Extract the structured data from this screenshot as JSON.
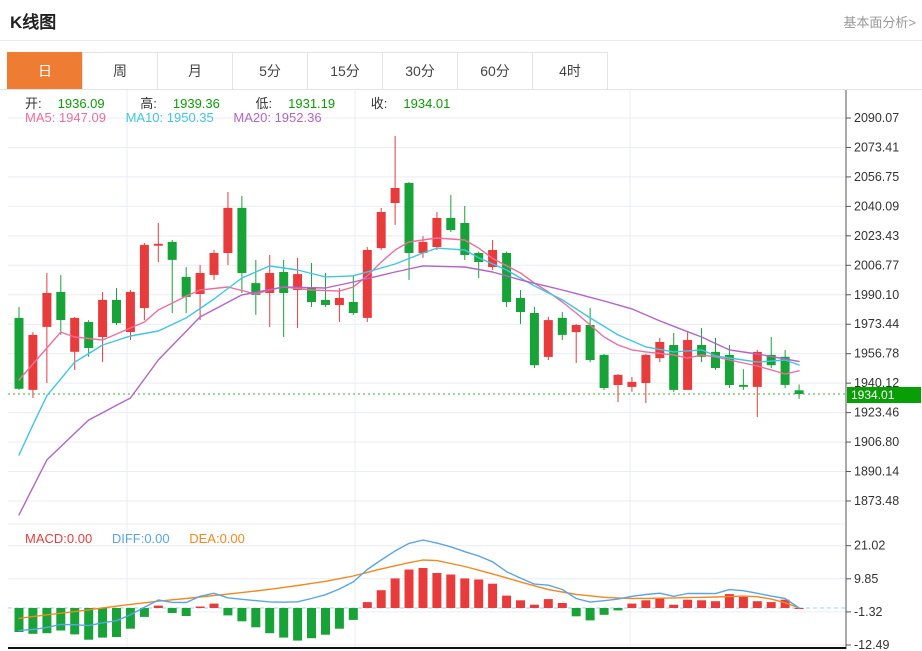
{
  "header": {
    "title": "K线图",
    "link_label": "基本面分析>"
  },
  "tabs": [
    {
      "label": "日",
      "active": true
    },
    {
      "label": "周",
      "active": false
    },
    {
      "label": "月",
      "active": false
    },
    {
      "label": "5分",
      "active": false
    },
    {
      "label": "15分",
      "active": false
    },
    {
      "label": "30分",
      "active": false
    },
    {
      "label": "60分",
      "active": false
    },
    {
      "label": "4时",
      "active": false
    }
  ],
  "ohlc_legend": {
    "open_label": "开:",
    "open": "1936.09",
    "high_label": "高:",
    "high": "1939.36",
    "low_label": "低:",
    "low": "1931.19",
    "close_label": "收:",
    "close": "1934.01"
  },
  "ma_legend": {
    "ma5": "MA5: 1947.09",
    "ma10": "MA10: 1950.35",
    "ma20": "MA20: 1952.36"
  },
  "macd_legend": {
    "macd": "MACD:0.00",
    "diff": "DIFF:0.00",
    "dea": "DEA:0.00"
  },
  "current_price_tag": "1934.01",
  "colors": {
    "up": "#e83c3c",
    "down": "#17a338",
    "ma5": "#f06e9e",
    "ma10": "#3fc6e6",
    "ma20": "#b464c8",
    "diff": "#58a5e8",
    "dea": "#f5871f",
    "grid": "#e9eef5",
    "axis": "#555",
    "axis_text": "#333",
    "dotted_price": "#2eb82e",
    "macd_zero_dash": "#a3d0f2",
    "tab_active": "#ee7d33",
    "tag_green": "#0a9e06",
    "bottom_border": "#111"
  },
  "chart_data": {
    "type": "candlestick-with-macd",
    "title": "K线图 (daily gold K-line)",
    "legend_position": "top-left",
    "grid": true,
    "y_axis_main": {
      "ticks": [
        2090.07,
        2073.41,
        2056.75,
        2040.09,
        2023.43,
        2006.77,
        1990.1,
        1973.44,
        1956.78,
        1940.12,
        1923.46,
        1906.8,
        1890.14,
        1873.48
      ],
      "range": [
        1865,
        2095
      ]
    },
    "y_axis_macd": {
      "ticks": [
        21.02,
        9.85,
        -1.32,
        -12.49
      ],
      "range": [
        -14,
        23
      ]
    },
    "current_price": 1934.01,
    "candles_ohlc": [
      [
        1977.0,
        1983.2,
        1936.3,
        1936.9
      ],
      [
        1936.3,
        1969.0,
        1931.7,
        1967.4
      ],
      [
        1971.9,
        2002.4,
        1940.2,
        1991.1
      ],
      [
        1991.7,
        2001.3,
        1967.4,
        1975.8
      ],
      [
        1957.8,
        1977.5,
        1947.6,
        1977.0
      ],
      [
        1974.7,
        1975.8,
        1955.0,
        1960.0
      ],
      [
        1966.2,
        1991.7,
        1952.0,
        1987.2
      ],
      [
        1987.2,
        1993.9,
        1973.0,
        1974.1
      ],
      [
        1969.0,
        1992.8,
        1964.5,
        1991.7
      ],
      [
        1982.6,
        2019.4,
        1975.8,
        2018.3
      ],
      [
        2017.8,
        2030.7,
        2008.6,
        2018.9
      ],
      [
        2020.0,
        2021.1,
        1979.8,
        2009.8
      ],
      [
        2000.2,
        2005.8,
        1979.8,
        1988.9
      ],
      [
        1990.5,
        2006.9,
        1975.8,
        2002.4
      ],
      [
        2001.3,
        2015.4,
        1998.5,
        2013.7
      ],
      [
        2013.7,
        2048.2,
        2006.9,
        2039.2
      ],
      [
        2039.2,
        2046.0,
        1991.1,
        2002.4
      ],
      [
        1996.7,
        2009.8,
        1978.7,
        1990.0
      ],
      [
        1991.1,
        2012.6,
        1971.9,
        2002.4
      ],
      [
        2003.0,
        2009.8,
        1966.2,
        1991.1
      ],
      [
        1992.8,
        2011.0,
        1971.3,
        2001.8
      ],
      [
        1994.5,
        2008.1,
        1983.2,
        1986.0
      ],
      [
        1987.2,
        2002.4,
        1983.2,
        1984.3
      ],
      [
        1984.3,
        1993.9,
        1974.7,
        1988.3
      ],
      [
        1986.0,
        2001.3,
        1978.7,
        1979.8
      ],
      [
        1977.0,
        2017.1,
        1974.7,
        2015.4
      ],
      [
        2016.5,
        2039.2,
        2015.4,
        2036.9
      ],
      [
        2042.0,
        2079.9,
        2029.6,
        2050.5
      ],
      [
        2053.3,
        2053.9,
        1998.5,
        2013.7
      ],
      [
        2013.7,
        2023.3,
        2011.0,
        2020.0
      ],
      [
        2017.1,
        2036.9,
        2015.4,
        2033.5
      ],
      [
        2033.5,
        2046.5,
        2025.6,
        2026.7
      ],
      [
        2030.7,
        2040.3,
        2009.8,
        2012.6
      ],
      [
        2013.7,
        2014.5,
        1999.6,
        2008.6
      ],
      [
        2005.8,
        2021.1,
        2004.1,
        2015.4
      ],
      [
        2013.7,
        2014.5,
        1983.2,
        1986.0
      ],
      [
        1988.3,
        1992.8,
        1973.5,
        1980.4
      ],
      [
        1979.8,
        1983.2,
        1948.7,
        1950.3
      ],
      [
        1955.0,
        1977.6,
        1953.2,
        1975.8
      ],
      [
        1977.0,
        1980.4,
        1964.5,
        1967.4
      ],
      [
        1969.0,
        1973.5,
        1951.5,
        1973.0
      ],
      [
        1973.0,
        1982.6,
        1952.0,
        1953.2
      ],
      [
        1956.1,
        1956.7,
        1936.3,
        1937.4
      ],
      [
        1939.1,
        1945.3,
        1929.4,
        1944.8
      ],
      [
        1938.0,
        1943.6,
        1935.2,
        1940.8
      ],
      [
        1940.2,
        1956.7,
        1928.9,
        1956.1
      ],
      [
        1954.3,
        1965.7,
        1952.0,
        1963.4
      ],
      [
        1961.7,
        1968.5,
        1935.2,
        1936.3
      ],
      [
        1936.3,
        1969.0,
        1936.3,
        1964.5
      ],
      [
        1961.7,
        1971.3,
        1952.0,
        1955.0
      ],
      [
        1957.8,
        1965.7,
        1947.6,
        1948.7
      ],
      [
        1956.1,
        1961.7,
        1937.4,
        1939.1
      ],
      [
        1939.1,
        1948.0,
        1936.3,
        1938.0
      ],
      [
        1938.0,
        1958.9,
        1921.0,
        1957.8
      ],
      [
        1956.1,
        1966.2,
        1948.7,
        1950.3
      ],
      [
        1955.0,
        1958.9,
        1937.4,
        1939.1
      ],
      [
        1936.09,
        1939.36,
        1931.19,
        1934.01
      ]
    ],
    "ma5_points": [
      [
        0,
        1941.9
      ],
      [
        2,
        1960.0
      ],
      [
        3,
        1969.0
      ],
      [
        4,
        1966.2
      ],
      [
        6,
        1964.5
      ],
      [
        8,
        1971.3
      ],
      [
        9,
        1974.7
      ],
      [
        10,
        1981.5
      ],
      [
        11,
        1985.4
      ],
      [
        12,
        1989.4
      ],
      [
        13,
        1992.8
      ],
      [
        15,
        1994.5
      ],
      [
        17,
        1990.5
      ],
      [
        18,
        1992.8
      ],
      [
        19,
        1994.5
      ],
      [
        21,
        1992.8
      ],
      [
        23,
        1992.2
      ],
      [
        24,
        1994.5
      ],
      [
        25,
        2000.8
      ],
      [
        26,
        2008.6
      ],
      [
        27,
        2015.4
      ],
      [
        28,
        2020.0
      ],
      [
        29,
        2021.1
      ],
      [
        30,
        2022.2
      ],
      [
        32,
        2021.1
      ],
      [
        33,
        2016.5
      ],
      [
        34,
        2010.6
      ],
      [
        36,
        2002.4
      ],
      [
        37,
        1996.7
      ],
      [
        38,
        1991.7
      ],
      [
        39,
        1986.0
      ],
      [
        40,
        1979.8
      ],
      [
        41,
        1973.0
      ],
      [
        42,
        1966.2
      ],
      [
        43,
        1961.7
      ],
      [
        44,
        1958.9
      ],
      [
        45,
        1957.8
      ],
      [
        47,
        1956.1
      ],
      [
        48,
        1954.3
      ],
      [
        49,
        1956.1
      ],
      [
        50,
        1955.0
      ],
      [
        51,
        1953.2
      ],
      [
        52,
        1951.5
      ],
      [
        53,
        1949.8
      ],
      [
        54,
        1947.6
      ],
      [
        55,
        1945.3
      ],
      [
        56,
        1947.1
      ]
    ],
    "ma10_points": [
      [
        0,
        1899.5
      ],
      [
        1,
        1916.5
      ],
      [
        2,
        1933.0
      ],
      [
        4,
        1952.0
      ],
      [
        6,
        1961.7
      ],
      [
        8,
        1966.8
      ],
      [
        10,
        1969.6
      ],
      [
        12,
        1977.0
      ],
      [
        14,
        1987.7
      ],
      [
        16,
        1999.6
      ],
      [
        18,
        2006.4
      ],
      [
        20,
        2004.1
      ],
      [
        22,
        2000.2
      ],
      [
        24,
        2000.8
      ],
      [
        27,
        2007.5
      ],
      [
        29,
        2013.7
      ],
      [
        30,
        2016.5
      ],
      [
        32,
        2015.4
      ],
      [
        33,
        2011.0
      ],
      [
        35,
        2004.1
      ],
      [
        37,
        1995.1
      ],
      [
        39,
        1987.2
      ],
      [
        41,
        1977.0
      ],
      [
        43,
        1967.4
      ],
      [
        45,
        1960.6
      ],
      [
        47,
        1957.8
      ],
      [
        49,
        1958.9
      ],
      [
        50,
        1955.5
      ],
      [
        52,
        1953.2
      ],
      [
        53,
        1952.0
      ],
      [
        55,
        1953.2
      ],
      [
        56,
        1950.4
      ]
    ],
    "ma20_points": [
      [
        0,
        1865.6
      ],
      [
        2,
        1896.7
      ],
      [
        5,
        1919.3
      ],
      [
        8,
        1931.7
      ],
      [
        10,
        1953.2
      ],
      [
        13,
        1977.6
      ],
      [
        16,
        1990.0
      ],
      [
        19,
        1994.5
      ],
      [
        22,
        1993.9
      ],
      [
        24,
        1997.3
      ],
      [
        27,
        2003.0
      ],
      [
        29,
        2006.4
      ],
      [
        32,
        2005.8
      ],
      [
        34,
        2003.0
      ],
      [
        36,
        1998.5
      ],
      [
        39,
        1992.8
      ],
      [
        42,
        1986.6
      ],
      [
        44,
        1982.1
      ],
      [
        46,
        1975.3
      ],
      [
        49,
        1966.2
      ],
      [
        51,
        1958.9
      ],
      [
        53,
        1956.6
      ],
      [
        56,
        1952.4
      ]
    ],
    "macd_hist": [
      -8.1,
      -8.7,
      -8.5,
      -7.6,
      -8.9,
      -10.7,
      -10.0,
      -9.8,
      -7.0,
      -3.0,
      0.8,
      -1.7,
      -2.7,
      0.5,
      1.5,
      -2.5,
      -4.5,
      -6.5,
      -8.5,
      -10.0,
      -11.0,
      -10.2,
      -9.0,
      -7.0,
      -4.0,
      2.0,
      6.0,
      10.0,
      13.0,
      13.5,
      11.8,
      11.3,
      10.0,
      9.6,
      8.2,
      4.2,
      2.6,
      1.1,
      3.0,
      1.7,
      -2.8,
      -4.2,
      -2.3,
      -0.8,
      1.5,
      2.6,
      3.4,
      1.1,
      2.8,
      2.6,
      2.3,
      4.7,
      3.7,
      2.3,
      2.0,
      2.8,
      0.0
    ],
    "dea_points": [
      [
        0,
        -3.5
      ],
      [
        2,
        -2.3
      ],
      [
        4,
        -1.2
      ],
      [
        6,
        0.0
      ],
      [
        8,
        1.2
      ],
      [
        10,
        2.3
      ],
      [
        12,
        3.2
      ],
      [
        14,
        4.2
      ],
      [
        16,
        5.2
      ],
      [
        18,
        6.3
      ],
      [
        20,
        7.6
      ],
      [
        22,
        9.0
      ],
      [
        24,
        10.8
      ],
      [
        26,
        13.2
      ],
      [
        28,
        15.3
      ],
      [
        29,
        16.2
      ],
      [
        30,
        16.0
      ],
      [
        32,
        14.0
      ],
      [
        34,
        11.5
      ],
      [
        36,
        8.8
      ],
      [
        38,
        6.2
      ],
      [
        40,
        4.6
      ],
      [
        42,
        3.6
      ],
      [
        44,
        3.2
      ],
      [
        46,
        3.3
      ],
      [
        48,
        3.5
      ],
      [
        50,
        3.7
      ],
      [
        52,
        4.0
      ],
      [
        53,
        3.8
      ],
      [
        54,
        3.0
      ],
      [
        55,
        1.8
      ],
      [
        56,
        0.0
      ]
    ]
  }
}
